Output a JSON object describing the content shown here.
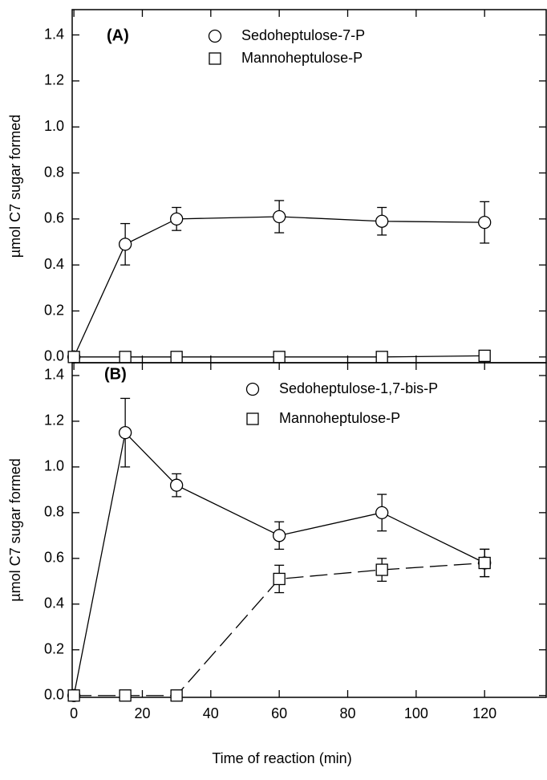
{
  "chart_data": [
    {
      "type": "line",
      "panel_label": "(A)",
      "ylabel": "µmol C7 sugar formed",
      "xlim": [
        -0.5,
        138
      ],
      "ylim": [
        -0.025,
        1.51
      ],
      "xticks": [
        0,
        20,
        40,
        60,
        80,
        100,
        120
      ],
      "yticks": [
        {
          "value": 0,
          "label": "0.0"
        },
        0.2,
        0.4,
        0.6,
        0.8,
        {
          "value": 1,
          "label": "1.0"
        },
        1.2,
        1.4
      ],
      "x": [
        0,
        15,
        30,
        60,
        90,
        120
      ],
      "series": [
        {
          "name": "Sedoheptulose-7-P",
          "color": "#000000",
          "marker": "circle",
          "line_style": "solid",
          "values": [
            0,
            0.49,
            0.6,
            0.61,
            0.59,
            0.585
          ],
          "errors": [
            0,
            0.09,
            0.05,
            0.07,
            0.06,
            0.09
          ]
        },
        {
          "name": "Mannoheptulose-P",
          "color": "#000000",
          "marker": "square",
          "line_style": "solid",
          "values": [
            0,
            0,
            0,
            0,
            0,
            0.005
          ]
        }
      ]
    },
    {
      "type": "line",
      "panel_label": "(B)",
      "ylabel": "µmol C7 sugar formed",
      "xlabel": "Time of reaction (min)",
      "xlim": [
        -0.5,
        138
      ],
      "ylim": [
        -0.008,
        1.456
      ],
      "xticks": [
        0,
        20,
        40,
        60,
        80,
        100,
        120
      ],
      "yticks": [
        {
          "value": 0,
          "label": "0.0"
        },
        0.2,
        0.4,
        0.6,
        0.8,
        {
          "value": 1,
          "label": "1.0"
        },
        1.2,
        1.4
      ],
      "x": [
        0,
        15,
        30,
        60,
        90,
        120
      ],
      "series": [
        {
          "name": "Sedoheptulose-1,7-bis-P",
          "color": "#000000",
          "marker": "circle",
          "line_style": "solid",
          "values": [
            0,
            1.15,
            0.92,
            0.7,
            0.8,
            0.58
          ],
          "errors": [
            0,
            0.15,
            0.05,
            0.06,
            0.08,
            0.06
          ]
        },
        {
          "name": "Mannoheptulose-P",
          "color": "#000000",
          "marker": "square",
          "line_style": "dashed",
          "values": [
            0,
            0,
            0,
            0.51,
            0.55,
            0.58
          ],
          "errors": [
            0,
            0,
            0,
            0.06,
            0.05,
            0.06
          ]
        }
      ]
    }
  ]
}
